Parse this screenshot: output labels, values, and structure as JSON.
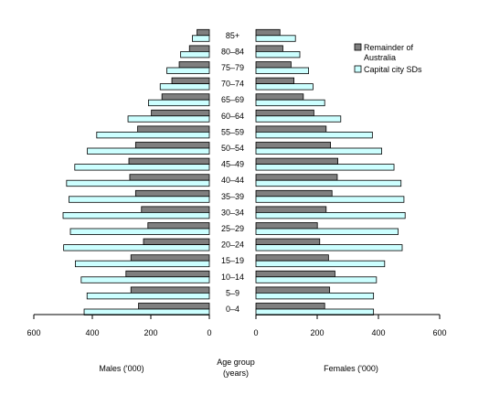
{
  "chart_data": {
    "type": "bar",
    "orientation": "horizontal-population-pyramid",
    "categories": [
      "0–4",
      "5–9",
      "10–14",
      "15–19",
      "20–24",
      "25–29",
      "30–34",
      "35–39",
      "40–44",
      "45–49",
      "50–54",
      "55–59",
      "60–64",
      "65–69",
      "70–74",
      "75–79",
      "80–84",
      "85+"
    ],
    "category_axis_label": [
      "Age group",
      "(years)"
    ],
    "left_axis_label": "Males ('000)",
    "right_axis_label": "Females ('000)",
    "left_ticks": [
      "600",
      "400",
      "200",
      "0"
    ],
    "right_ticks": [
      "0",
      "200",
      "400",
      "600"
    ],
    "xlim": [
      0,
      600
    ],
    "legend_position": "top-right",
    "series": [
      {
        "name": "Remainder of Australia",
        "color": "#7f7f7f",
        "males": [
          242,
          268,
          285,
          268,
          225,
          210,
          232,
          252,
          272,
          275,
          252,
          245,
          198,
          162,
          128,
          103,
          68,
          42
        ],
        "females": [
          235,
          252,
          270,
          248,
          218,
          210,
          240,
          260,
          278,
          280,
          255,
          240,
          198,
          162,
          130,
          120,
          92,
          82
        ]
      },
      {
        "name": "Capital city SDs",
        "color": "#ccffff",
        "males": [
          428,
          418,
          438,
          458,
          498,
          475,
          500,
          480,
          488,
          460,
          417,
          385,
          278,
          208,
          168,
          145,
          98,
          58
        ],
        "females": [
          402,
          402,
          412,
          440,
          500,
          486,
          510,
          506,
          496,
          472,
          430,
          398,
          290,
          235,
          195,
          180,
          150,
          135
        ]
      }
    ]
  }
}
